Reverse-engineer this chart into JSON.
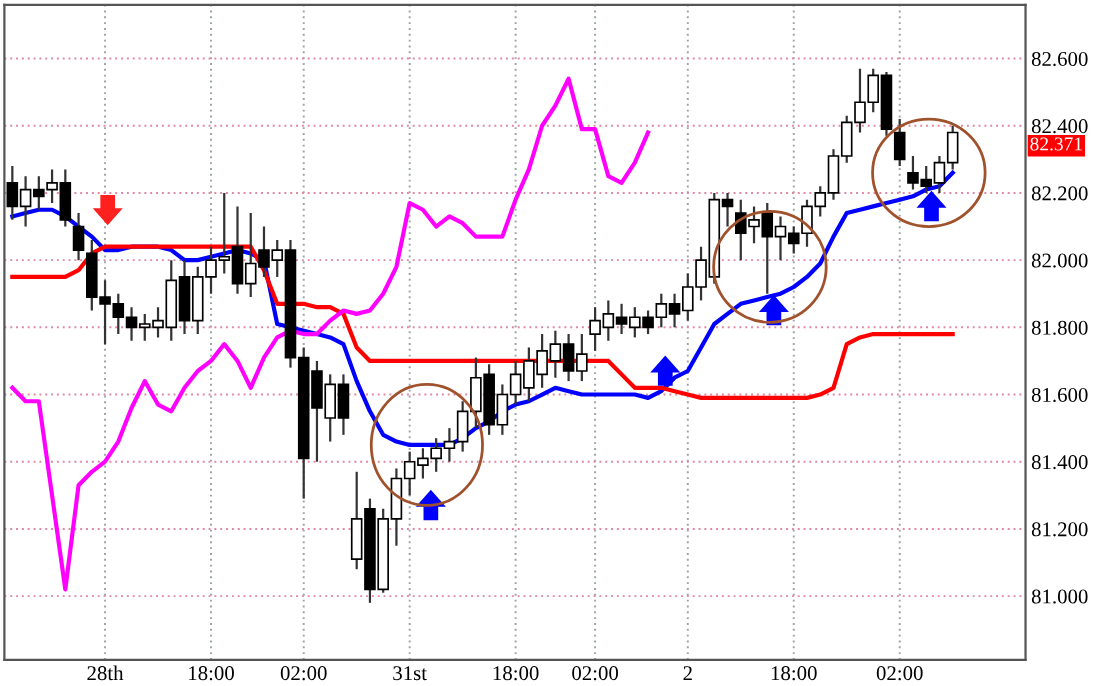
{
  "chart_data": {
    "type": "candlestick",
    "categories": [
      null,
      null,
      null,
      null,
      null,
      null,
      null,
      "28th",
      null,
      null,
      null,
      null,
      null,
      null,
      null,
      "18:00",
      null,
      null,
      null,
      null,
      null,
      null,
      "02:00",
      null,
      null,
      null,
      null,
      null,
      null,
      null,
      "31st",
      null,
      null,
      null,
      null,
      null,
      null,
      null,
      "18:00",
      null,
      null,
      null,
      null,
      null,
      "02:00",
      null,
      null,
      null,
      null,
      null,
      null,
      "2",
      null,
      null,
      null,
      null,
      null,
      null,
      null,
      "18:00",
      null,
      null,
      null,
      null,
      null,
      null,
      null,
      "02:00",
      null,
      null,
      null,
      null
    ],
    "ohlc": [
      [
        82.23,
        82.28,
        82.12,
        82.16
      ],
      [
        82.16,
        82.25,
        82.1,
        82.21
      ],
      [
        82.21,
        82.25,
        82.15,
        82.19
      ],
      [
        82.21,
        82.27,
        82.17,
        82.23
      ],
      [
        82.23,
        82.27,
        82.1,
        82.12
      ],
      [
        82.1,
        82.14,
        82.0,
        82.03
      ],
      [
        82.02,
        82.06,
        81.85,
        81.89
      ],
      [
        81.89,
        81.94,
        81.75,
        81.87
      ],
      [
        81.87,
        81.9,
        81.78,
        81.83
      ],
      [
        81.83,
        81.86,
        81.76,
        81.8
      ],
      [
        81.8,
        81.84,
        81.76,
        81.81
      ],
      [
        81.8,
        81.86,
        81.77,
        81.82
      ],
      [
        81.8,
        82.0,
        81.76,
        81.94
      ],
      [
        81.95,
        82.0,
        81.78,
        81.82
      ],
      [
        81.82,
        81.98,
        81.78,
        81.95
      ],
      [
        81.95,
        82.04,
        81.9,
        82.0
      ],
      [
        82.0,
        82.2,
        81.96,
        82.01
      ],
      [
        82.04,
        82.16,
        81.9,
        81.93
      ],
      [
        81.93,
        82.14,
        81.89,
        81.99
      ],
      [
        82.03,
        82.1,
        81.95,
        81.98
      ],
      [
        82.0,
        82.06,
        81.95,
        82.03
      ],
      [
        82.03,
        82.06,
        81.68,
        81.71
      ],
      [
        81.71,
        81.74,
        81.29,
        81.41
      ],
      [
        81.67,
        81.7,
        81.4,
        81.56
      ],
      [
        81.53,
        81.66,
        81.46,
        81.63
      ],
      [
        81.63,
        81.66,
        81.48,
        81.53
      ],
      [
        81.11,
        81.37,
        81.08,
        81.23
      ],
      [
        81.26,
        81.29,
        80.98,
        81.02
      ],
      [
        81.02,
        81.26,
        81.01,
        81.23
      ],
      [
        81.23,
        81.38,
        81.15,
        81.35
      ],
      [
        81.35,
        81.43,
        81.3,
        81.4
      ],
      [
        81.39,
        81.44,
        81.35,
        81.41
      ],
      [
        81.41,
        81.47,
        81.37,
        81.44
      ],
      [
        81.44,
        81.5,
        81.4,
        81.46
      ],
      [
        81.46,
        81.58,
        81.43,
        81.55
      ],
      [
        81.55,
        81.71,
        81.5,
        81.65
      ],
      [
        81.66,
        81.69,
        81.48,
        81.51
      ],
      [
        81.51,
        81.63,
        81.48,
        81.6
      ],
      [
        81.6,
        81.7,
        81.57,
        81.66
      ],
      [
        81.62,
        81.74,
        81.58,
        81.7
      ],
      [
        81.66,
        81.78,
        81.62,
        81.73
      ],
      [
        81.7,
        81.79,
        81.65,
        81.75
      ],
      [
        81.75,
        81.78,
        81.64,
        81.67
      ],
      [
        81.67,
        81.78,
        81.64,
        81.72
      ],
      [
        81.78,
        81.86,
        81.73,
        81.82
      ],
      [
        81.8,
        81.88,
        81.76,
        81.84
      ],
      [
        81.83,
        81.87,
        81.78,
        81.81
      ],
      [
        81.8,
        81.86,
        81.77,
        81.83
      ],
      [
        81.83,
        81.85,
        81.78,
        81.8
      ],
      [
        81.83,
        81.9,
        81.8,
        81.87
      ],
      [
        81.87,
        81.9,
        81.8,
        81.84
      ],
      [
        81.85,
        81.96,
        81.82,
        81.92
      ],
      [
        81.92,
        82.04,
        81.88,
        82.0
      ],
      [
        81.95,
        82.2,
        81.93,
        82.18
      ],
      [
        82.18,
        82.2,
        82.1,
        82.16
      ],
      [
        82.14,
        82.18,
        82.0,
        82.08
      ],
      [
        82.1,
        82.16,
        82.05,
        82.12
      ],
      [
        82.14,
        82.17,
        81.9,
        82.07
      ],
      [
        82.07,
        82.13,
        82.0,
        82.1
      ],
      [
        82.08,
        82.1,
        82.02,
        82.05
      ],
      [
        82.08,
        82.18,
        82.04,
        82.16
      ],
      [
        82.16,
        82.22,
        82.13,
        82.2
      ],
      [
        82.2,
        82.33,
        82.18,
        82.31
      ],
      [
        82.31,
        82.43,
        82.29,
        82.41
      ],
      [
        82.41,
        82.57,
        82.38,
        82.47
      ],
      [
        82.47,
        82.57,
        82.44,
        82.55
      ],
      [
        82.55,
        82.56,
        82.37,
        82.39
      ],
      [
        82.38,
        82.42,
        82.28,
        82.3
      ],
      [
        82.26,
        82.31,
        82.21,
        82.23
      ],
      [
        82.24,
        82.28,
        82.2,
        82.22
      ],
      [
        82.23,
        82.31,
        82.2,
        82.29
      ],
      [
        82.29,
        82.4,
        82.27,
        82.38
      ]
    ],
    "series": [
      {
        "type": "line",
        "color": "#0000ff",
        "values": [
          82.13,
          82.14,
          82.15,
          82.15,
          82.13,
          82.1,
          82.07,
          82.03,
          82.03,
          82.04,
          82.04,
          82.04,
          82.03,
          82.0,
          82.0,
          82.01,
          82.02,
          82.03,
          82.02,
          82.0,
          81.81,
          81.8,
          81.79,
          81.78,
          81.77,
          81.75,
          81.64,
          81.55,
          81.48,
          81.46,
          81.45,
          81.45,
          81.45,
          81.45,
          81.47,
          81.5,
          81.52,
          81.55,
          81.57,
          81.58,
          81.6,
          81.62,
          81.61,
          81.6,
          81.6,
          81.6,
          81.6,
          81.6,
          81.59,
          81.61,
          81.65,
          81.67,
          81.74,
          81.81,
          81.84,
          81.87,
          81.88,
          81.89,
          81.9,
          81.92,
          81.95,
          81.99,
          82.07,
          82.14,
          82.15,
          82.16,
          82.17,
          82.18,
          82.19,
          82.21,
          82.22,
          82.26
        ]
      },
      {
        "type": "line",
        "color": "#ff0000",
        "values": [
          81.95,
          81.95,
          81.95,
          81.95,
          81.95,
          81.97,
          82.02,
          82.04,
          82.04,
          82.04,
          82.04,
          82.04,
          82.04,
          82.04,
          82.04,
          82.04,
          82.04,
          82.04,
          82.04,
          81.97,
          81.87,
          81.87,
          81.87,
          81.86,
          81.86,
          81.84,
          81.74,
          81.7,
          81.7,
          81.7,
          81.7,
          81.7,
          81.7,
          81.7,
          81.7,
          81.7,
          81.7,
          81.7,
          81.7,
          81.7,
          81.7,
          81.7,
          81.7,
          81.7,
          81.7,
          81.7,
          81.66,
          81.62,
          81.62,
          81.62,
          81.61,
          81.6,
          81.59,
          81.59,
          81.59,
          81.59,
          81.59,
          81.59,
          81.59,
          81.59,
          81.59,
          81.6,
          81.62,
          81.75,
          81.77,
          81.78,
          81.78,
          81.78,
          81.78,
          81.78,
          81.78,
          81.78
        ]
      },
      {
        "type": "line",
        "color": "#ff00ff",
        "values": [
          81.62,
          81.58,
          81.58,
          81.3,
          81.02,
          81.33,
          81.37,
          81.4,
          81.46,
          81.56,
          81.64,
          81.57,
          81.55,
          81.62,
          81.67,
          81.7,
          81.75,
          81.7,
          81.62,
          81.71,
          81.77,
          81.79,
          81.78,
          81.78,
          81.82,
          81.85,
          81.84,
          81.85,
          81.9,
          81.98,
          82.17,
          82.15,
          82.1,
          82.13,
          82.11,
          82.07,
          82.07,
          82.07,
          82.18,
          82.27,
          82.4,
          82.46,
          82.54,
          82.39,
          82.39,
          82.25,
          82.23,
          82.29,
          82.38,
          null,
          null,
          null,
          null,
          null,
          null,
          null,
          null,
          null,
          null,
          null,
          null,
          null,
          null,
          null,
          null,
          null,
          null,
          null,
          null,
          null,
          null,
          null
        ]
      }
    ],
    "ylim": [
      80.81,
      82.76
    ],
    "yticks": [
      {
        "value": 81.0,
        "label": "81.000"
      },
      {
        "value": 81.2,
        "label": "81.200"
      },
      {
        "value": 81.4,
        "label": "81.400"
      },
      {
        "value": 81.6,
        "label": "81.600"
      },
      {
        "value": 81.8,
        "label": "81.800"
      },
      {
        "value": 82.0,
        "label": "82.000"
      },
      {
        "value": 82.2,
        "label": "82.200"
      },
      {
        "value": 82.4,
        "label": "82.400"
      },
      {
        "value": 82.6,
        "label": "82.600"
      }
    ],
    "annotations": [
      "82.371"
    ],
    "grid": true,
    "line_style": "solid",
    "marker": "none"
  }
}
